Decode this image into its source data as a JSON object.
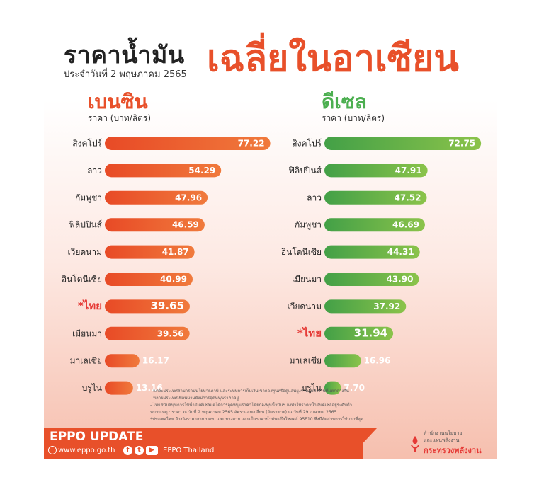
{
  "header": {
    "title_main": "ราคาน้ำมัน",
    "title_accent": "เฉลี่ยในอาเซียน",
    "date": "ประจำวันที่ 2 พฤษภาคม 2565"
  },
  "colors": {
    "petrol": "#e8502a",
    "diesel": "#4caf50",
    "highlight": "#e53935"
  },
  "chart_data": [
    {
      "type": "bar",
      "orientation": "horizontal",
      "title": "เบนซิน",
      "xlabel": "ราคา (บาท/ลิตร)",
      "categories": [
        "สิงคโปร์",
        "ลาว",
        "กัมพูชา",
        "ฟิลิปปินส์",
        "เวียดนาม",
        "อินโดนีเซีย",
        "*ไทย",
        "เมียนมา",
        "มาเลเซีย",
        "บรูไน"
      ],
      "values": [
        77.22,
        54.29,
        47.96,
        46.59,
        41.87,
        40.99,
        39.65,
        39.56,
        16.17,
        13.16
      ],
      "value_labels": [
        "77.22",
        "54.29",
        "47.96",
        "46.59",
        "41.87",
        "40.99",
        "39.65",
        "39.56",
        "16.17",
        "13.16"
      ],
      "highlight": "*ไทย",
      "xlim": [
        0,
        80
      ]
    },
    {
      "type": "bar",
      "orientation": "horizontal",
      "title": "ดีเซล",
      "xlabel": "ราคา (บาท/ลิตร)",
      "categories": [
        "สิงคโปร์",
        "ฟิลิปปินส์",
        "ลาว",
        "กัมพูชา",
        "อินโดนีเซีย",
        "เมียนมา",
        "เวียดนาม",
        "*ไทย",
        "มาเลเซีย",
        "บรูไน"
      ],
      "values": [
        72.75,
        47.91,
        47.52,
        46.69,
        44.31,
        43.9,
        37.92,
        31.94,
        16.96,
        7.7
      ],
      "value_labels": [
        "72.75",
        "47.91",
        "47.52",
        "46.69",
        "44.31",
        "43.90",
        "37.92",
        "31.94",
        "16.96",
        "7.70"
      ],
      "highlight": "*ไทย",
      "xlim": [
        0,
        75
      ]
    }
  ],
  "footnotes": [
    "- แต่ละประเทศสามารถมีนโยบายภาษี และระบบการเก็บเงินเข้ากองทุนหรือดูแลพยุงราคาพลังงานที่แตกต่างกัน",
    "- หลายประเทศเพื่อนบ้านยังมีการอุดหนุนราคาอยู่",
    "- ไทยสนับสนุนการใช้น้ำมันดีเซลแต่ได้การอุดหนุนราคาโดยกองทุนน้ำมันฯ จึงทำให้ราคาน้ำมันดีเซลอยู่ระดับต่ำ",
    "หมายเหตุ : ราคา ณ วันที่ 2 พฤษภาคม 2565 อัตราแลกเปลี่ยน (อัตราขาย) ณ วันที่ 29 เมษายน 2565",
    "*ประเทศไทย อ้างอิงราคาจาก ปตท. และ บางจาก และเป็นราคาน้ำมันแก๊สโซฮอล์ 95E10 ซึ่งมีสัดส่วนการใช้มากที่สุด"
  ],
  "footer": {
    "title": "EPPO UPDATE",
    "url": "www.eppo.go.th",
    "channel": "EPPO Thailand",
    "org_line1": "สำนักงานนโยบาย",
    "org_line2": "และแผนพลังงาน",
    "org_line3": "กระทรวงพลังงาน"
  }
}
